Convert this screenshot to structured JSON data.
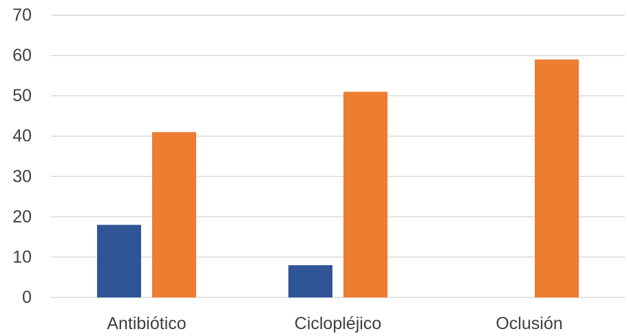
{
  "chart_data": {
    "type": "bar",
    "categories": [
      "Antibiótico",
      "Ciclopléjico",
      "Oclusión"
    ],
    "series": [
      {
        "values": [
          18,
          8,
          0
        ],
        "color": "#2f5597"
      },
      {
        "values": [
          41,
          51,
          59
        ],
        "color": "#ed7d31"
      }
    ],
    "title": "",
    "xlabel": "",
    "ylabel": "",
    "ylim": [
      0,
      70
    ],
    "yticks": [
      0,
      10,
      20,
      30,
      40,
      50,
      60,
      70
    ],
    "grid": true,
    "legend": "none"
  }
}
